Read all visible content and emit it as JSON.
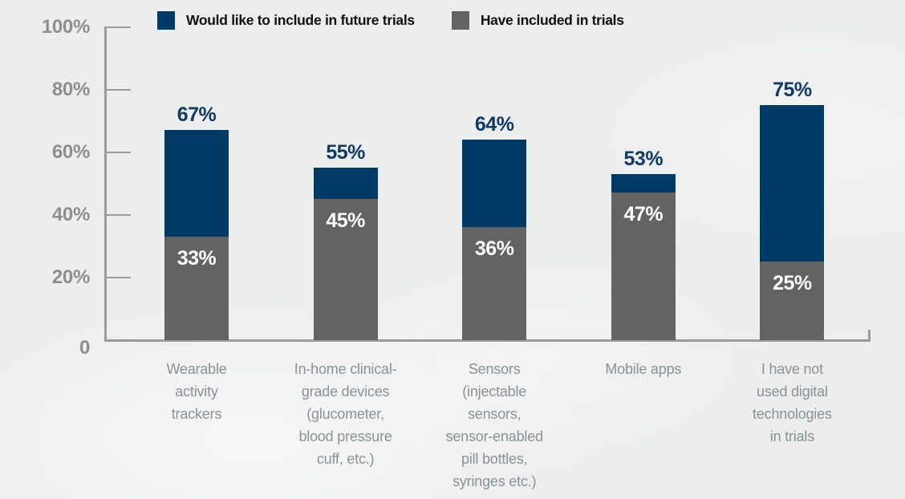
{
  "colors": {
    "bar_navy": "#003A66",
    "bar_gray": "#636363",
    "background": "#ECEDED",
    "axis": "#9B9B9B",
    "y_tick_label": "#8E8E8E",
    "category_label": "#8A9198",
    "total_label": "#0E3A63",
    "inside_label": "#FFFFFF",
    "legend_text": "#101014"
  },
  "legend": [
    {
      "label": "Would like to include in future trials",
      "color": "#003A66"
    },
    {
      "label": "Have included in trials",
      "color": "#636363"
    }
  ],
  "y_axis": {
    "ticks": [
      {
        "value": 100,
        "label": "100%"
      },
      {
        "value": 80,
        "label": "80%"
      },
      {
        "value": 60,
        "label": "60%"
      },
      {
        "value": 40,
        "label": "40%"
      },
      {
        "value": 20,
        "label": "20%"
      },
      {
        "value": 0,
        "label": "0"
      }
    ]
  },
  "chart_data": {
    "type": "bar",
    "subtype": "stacked",
    "categories": [
      "Wearable activity trackers",
      "In-home clinical-grade devices (glucometer, blood pressure cuff, etc.)",
      "Sensors (injectable sensors, sensor-enabled pill bottles, syringes etc.)",
      "Mobile apps",
      "I have not used digital technologies in trials"
    ],
    "category_lines": [
      [
        "Wearable",
        "activity",
        "trackers"
      ],
      [
        "In-home clinical-",
        "grade devices",
        "(glucometer,",
        "blood pressure",
        "cuff, etc.)"
      ],
      [
        "Sensors",
        "(injectable",
        "sensors,",
        "sensor-enabled",
        "pill bottles,",
        "syringes etc.)"
      ],
      [
        "Mobile apps"
      ],
      [
        "I have not",
        "used digital",
        "technologies",
        "in trials"
      ]
    ],
    "series": [
      {
        "name": "Have included in trials",
        "color": "#636363",
        "values": [
          33,
          45,
          36,
          47,
          25
        ]
      },
      {
        "name": "Would like to include in future trials",
        "color": "#003A66",
        "values": [
          34,
          10,
          28,
          6,
          50
        ],
        "note": "segment heights stacked above gray; labeled total = cumulative top"
      }
    ],
    "totals": [
      67,
      55,
      64,
      53,
      75
    ],
    "total_labels": [
      "67%",
      "55%",
      "64%",
      "53%",
      "75%"
    ],
    "included_labels": [
      "33%",
      "45%",
      "36%",
      "47%",
      "25%"
    ],
    "ylim": [
      0,
      100
    ],
    "y_tick_labels": [
      "100%",
      "80%",
      "60%",
      "40%",
      "20%",
      "0"
    ],
    "legend_position": "top",
    "grid": false
  }
}
